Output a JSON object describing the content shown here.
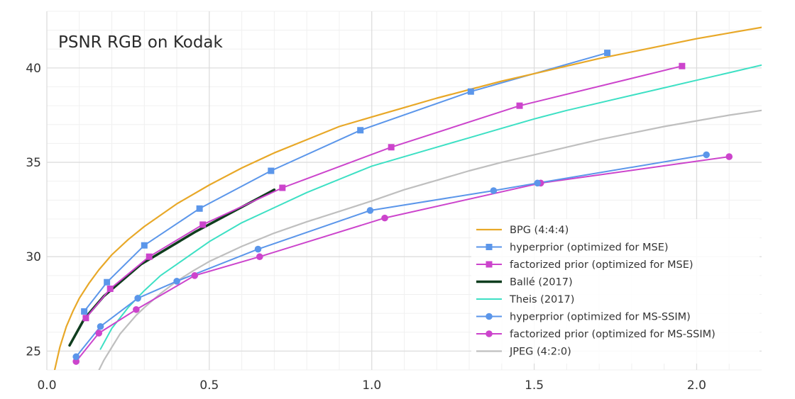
{
  "chart_data": {
    "type": "line",
    "title": "PSNR RGB on Kodak",
    "xlabel": "",
    "ylabel": "",
    "xlim": [
      0.0,
      2.2
    ],
    "ylim": [
      24.0,
      43.0
    ],
    "xticks": [
      0.0,
      0.5,
      1.0,
      1.5,
      2.0
    ],
    "xtick_labels": [
      "0.0",
      "0.5",
      "1.0",
      "1.5",
      "2.0"
    ],
    "yticks": [
      25,
      30,
      35,
      40
    ],
    "ytick_labels": [
      "25",
      "30",
      "35",
      "40"
    ],
    "grid": true,
    "legend_position": "lower-right",
    "series": [
      {
        "name": "BPG (4:4:4)",
        "color": "#e8a828",
        "marker": "none",
        "width": 2.2,
        "x": [
          0.02,
          0.04,
          0.06,
          0.08,
          0.1,
          0.13,
          0.16,
          0.2,
          0.25,
          0.3,
          0.35,
          0.4,
          0.5,
          0.6,
          0.7,
          0.8,
          0.9,
          1.0,
          1.1,
          1.2,
          1.3,
          1.4,
          1.5,
          1.6,
          1.7,
          1.8,
          1.9,
          2.0,
          2.1,
          2.2
        ],
        "y": [
          23.7,
          25.2,
          26.3,
          27.1,
          27.8,
          28.6,
          29.3,
          30.1,
          30.9,
          31.6,
          32.2,
          32.8,
          33.8,
          34.7,
          35.5,
          36.2,
          36.9,
          37.4,
          37.9,
          38.4,
          38.85,
          39.3,
          39.7,
          40.1,
          40.5,
          40.85,
          41.2,
          41.55,
          41.85,
          42.15
        ]
      },
      {
        "name": "hyperprior (optimized for MSE)",
        "color": "#5b96ea",
        "marker": "square",
        "width": 2,
        "x": [
          0.115,
          0.185,
          0.3,
          0.47,
          0.69,
          0.965,
          1.305,
          1.725
        ],
        "y": [
          27.1,
          28.65,
          30.6,
          32.55,
          34.55,
          36.7,
          38.75,
          40.8
        ]
      },
      {
        "name": "factorized prior (optimized for MSE)",
        "color": "#cc44cc",
        "marker": "square",
        "width": 2,
        "x": [
          0.12,
          0.195,
          0.315,
          0.48,
          0.725,
          1.06,
          1.455,
          1.955
        ],
        "y": [
          26.75,
          28.3,
          30.0,
          31.7,
          33.65,
          35.8,
          38.0,
          40.1
        ]
      },
      {
        "name": "Ballé (2017)",
        "color": "#0f3d1e",
        "marker": "none",
        "width": 3.5,
        "x": [
          0.07,
          0.115,
          0.175,
          0.29,
          0.455,
          0.7
        ],
        "y": [
          25.3,
          26.7,
          27.9,
          29.6,
          31.3,
          33.55
        ]
      },
      {
        "name": "Theis (2017)",
        "color": "#3de0c4",
        "marker": "none",
        "width": 2,
        "x": [
          0.165,
          0.2,
          0.25,
          0.3,
          0.35,
          0.4,
          0.5,
          0.6,
          0.7,
          0.8,
          0.9,
          1.0,
          1.1,
          1.2,
          1.3,
          1.4,
          1.5,
          1.6,
          1.7,
          1.8,
          1.9,
          2.0,
          2.1,
          2.2
        ],
        "y": [
          25.1,
          26.2,
          27.3,
          28.2,
          29.0,
          29.6,
          30.8,
          31.8,
          32.6,
          33.4,
          34.1,
          34.8,
          35.3,
          35.8,
          36.3,
          36.8,
          37.3,
          37.75,
          38.15,
          38.55,
          38.95,
          39.35,
          39.75,
          40.15
        ]
      },
      {
        "name": "hyperprior (optimized for MS-SSIM)",
        "color": "#5b96ea",
        "marker": "circle",
        "width": 2,
        "x": [
          0.09,
          0.165,
          0.28,
          0.4,
          0.65,
          0.995,
          1.375,
          1.51,
          2.03
        ],
        "y": [
          24.7,
          26.3,
          27.8,
          28.7,
          30.4,
          32.45,
          33.5,
          33.9,
          35.4
        ]
      },
      {
        "name": "factorized prior (optimized for MS-SSIM)",
        "color": "#cc44cc",
        "marker": "circle",
        "width": 2,
        "x": [
          0.09,
          0.16,
          0.275,
          0.455,
          0.655,
          1.04,
          1.52,
          2.1
        ],
        "y": [
          24.45,
          25.95,
          27.2,
          29.0,
          30.0,
          32.05,
          33.9,
          35.3
        ]
      },
      {
        "name": "JPEG (4:2:0)",
        "color": "#bfbfbf",
        "marker": "none",
        "width": 2.2,
        "x": [
          0.155,
          0.175,
          0.2,
          0.225,
          0.25,
          0.275,
          0.3,
          0.35,
          0.4,
          0.45,
          0.5,
          0.55,
          0.6,
          0.7,
          0.8,
          0.9,
          1.0,
          1.1,
          1.2,
          1.3,
          1.4,
          1.5,
          1.6,
          1.7,
          1.8,
          1.9,
          2.0,
          2.1,
          2.2
        ],
        "y": [
          23.8,
          24.5,
          25.2,
          25.9,
          26.4,
          26.9,
          27.3,
          28.05,
          28.7,
          29.25,
          29.75,
          30.15,
          30.55,
          31.25,
          31.85,
          32.4,
          32.95,
          33.55,
          34.05,
          34.55,
          35.0,
          35.4,
          35.8,
          36.2,
          36.55,
          36.9,
          37.2,
          37.5,
          37.75
        ]
      }
    ]
  }
}
